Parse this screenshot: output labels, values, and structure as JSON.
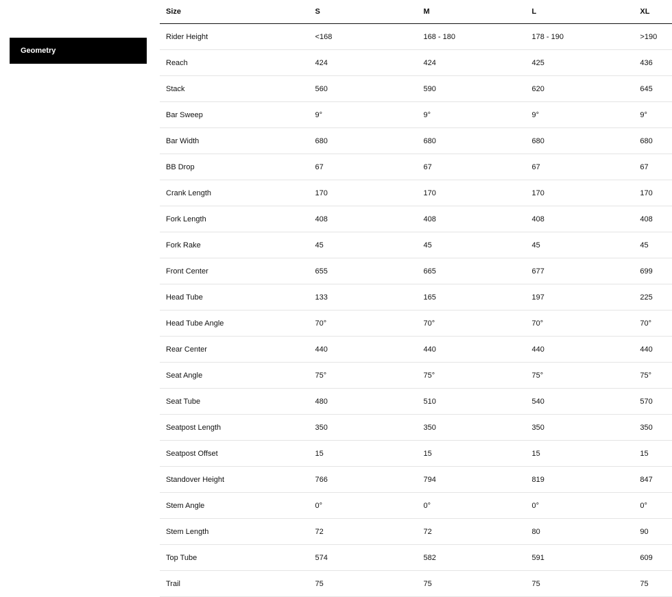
{
  "sidebar": {
    "active_tab": "Geometry"
  },
  "table": {
    "headers": [
      "Size",
      "S",
      "M",
      "L",
      "XL"
    ],
    "rows": [
      [
        "Rider Height",
        "<168",
        "168 - 180",
        "178 - 190",
        ">190"
      ],
      [
        "Reach",
        "424",
        "424",
        "425",
        "436"
      ],
      [
        "Stack",
        "560",
        "590",
        "620",
        "645"
      ],
      [
        "Bar Sweep",
        "9°",
        "9°",
        "9°",
        "9°"
      ],
      [
        "Bar Width",
        "680",
        "680",
        "680",
        "680"
      ],
      [
        "BB Drop",
        "67",
        "67",
        "67",
        "67"
      ],
      [
        "Crank Length",
        "170",
        "170",
        "170",
        "170"
      ],
      [
        "Fork Length",
        "408",
        "408",
        "408",
        "408"
      ],
      [
        "Fork Rake",
        "45",
        "45",
        "45",
        "45"
      ],
      [
        "Front Center",
        "655",
        "665",
        "677",
        "699"
      ],
      [
        "Head Tube",
        "133",
        "165",
        "197",
        "225"
      ],
      [
        "Head Tube Angle",
        "70°",
        "70°",
        "70°",
        "70°"
      ],
      [
        "Rear Center",
        "440",
        "440",
        "440",
        "440"
      ],
      [
        "Seat Angle",
        "75°",
        "75°",
        "75°",
        "75°"
      ],
      [
        "Seat Tube",
        "480",
        "510",
        "540",
        "570"
      ],
      [
        "Seatpost Length",
        "350",
        "350",
        "350",
        "350"
      ],
      [
        "Seatpost Offset",
        "15",
        "15",
        "15",
        "15"
      ],
      [
        "Standover Height",
        "766",
        "794",
        "819",
        "847"
      ],
      [
        "Stem Angle",
        "0°",
        "0°",
        "0°",
        "0°"
      ],
      [
        "Stem Length",
        "72",
        "72",
        "80",
        "90"
      ],
      [
        "Top Tube",
        "574",
        "582",
        "591",
        "609"
      ],
      [
        "Trail",
        "75",
        "75",
        "75",
        "75"
      ]
    ]
  }
}
